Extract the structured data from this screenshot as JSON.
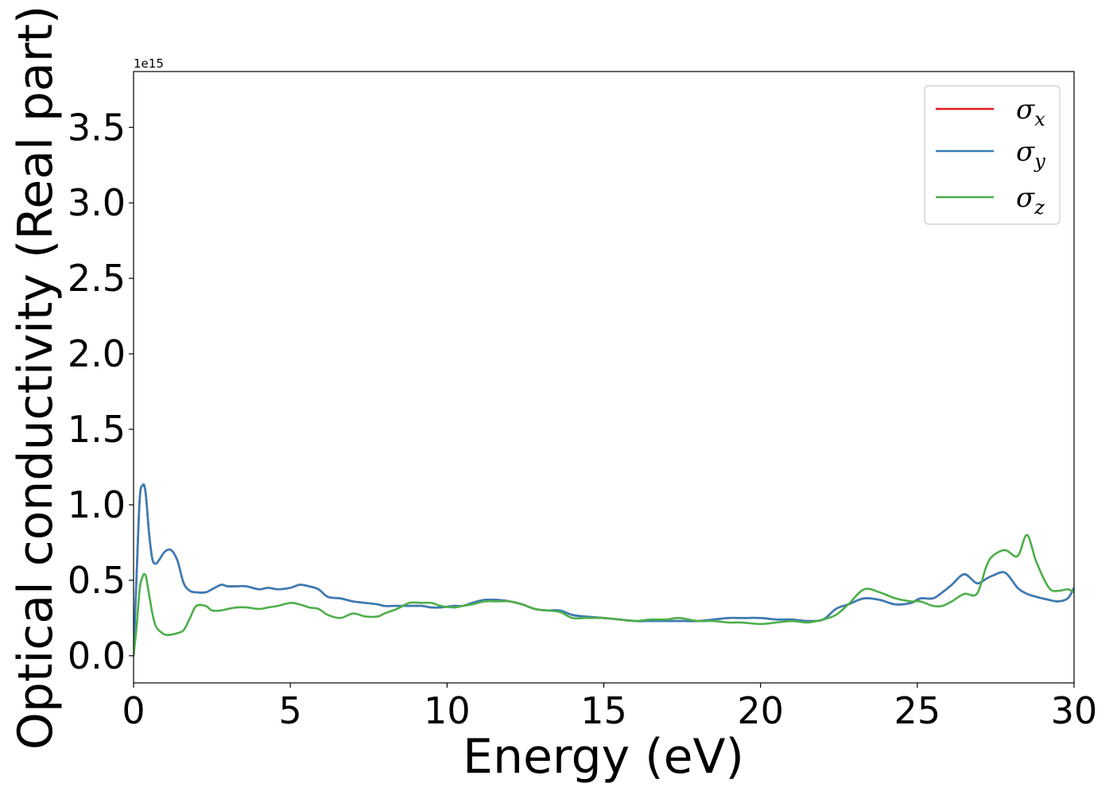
{
  "chart_data": {
    "type": "line",
    "title": "",
    "xlabel": "Energy (eV)",
    "ylabel": "Optical conductivity (Real part)",
    "y_offset_label": "1e15",
    "xlim": [
      0,
      30
    ],
    "ylim": [
      -0.18,
      3.87
    ],
    "xticks": [
      0,
      5,
      10,
      15,
      20,
      25,
      30
    ],
    "xtick_labels": [
      "0",
      "5",
      "10",
      "15",
      "20",
      "25",
      "30"
    ],
    "yticks": [
      0.0,
      0.5,
      1.0,
      1.5,
      2.0,
      2.5,
      3.0,
      3.5
    ],
    "ytick_labels": [
      "0.0",
      "0.5",
      "1.0",
      "1.5",
      "2.0",
      "2.5",
      "3.0",
      "3.5"
    ],
    "grid": false,
    "legend_position": "top-right",
    "x": [
      0,
      0.1,
      0.2,
      0.3,
      0.35,
      0.4,
      0.5,
      0.6,
      0.7,
      0.8,
      1.0,
      1.2,
      1.4,
      1.6,
      1.8,
      2.0,
      2.3,
      2.5,
      2.8,
      3.0,
      3.3,
      3.6,
      4.0,
      4.3,
      4.6,
      5.0,
      5.3,
      5.6,
      5.9,
      6.2,
      6.6,
      7.0,
      7.4,
      7.8,
      8.0,
      8.4,
      8.8,
      9.2,
      9.5,
      9.8,
      10.2,
      10.5,
      10.8,
      11.2,
      11.6,
      12.0,
      12.4,
      12.8,
      13.2,
      13.6,
      14.0,
      14.4,
      15.0,
      15.5,
      16.0,
      16.5,
      17.0,
      17.4,
      18.0,
      18.5,
      19.0,
      19.4,
      20.0,
      20.5,
      21.0,
      21.5,
      22.0,
      22.4,
      22.8,
      23.3,
      23.8,
      24.3,
      24.8,
      25.1,
      25.5,
      25.8,
      26.1,
      26.5,
      26.9,
      27.2,
      27.4,
      27.8,
      28.2,
      28.5,
      28.8,
      29.2,
      29.5,
      29.8,
      30.0
    ],
    "series": [
      {
        "name": "σx",
        "color": "#e41a1c",
        "values": [
          0.02,
          0.55,
          1.05,
          1.13,
          1.12,
          1.05,
          0.8,
          0.64,
          0.61,
          0.63,
          0.69,
          0.7,
          0.63,
          0.48,
          0.43,
          0.42,
          0.42,
          0.44,
          0.47,
          0.46,
          0.46,
          0.46,
          0.44,
          0.45,
          0.44,
          0.45,
          0.47,
          0.46,
          0.44,
          0.39,
          0.38,
          0.36,
          0.35,
          0.34,
          0.33,
          0.33,
          0.33,
          0.33,
          0.32,
          0.32,
          0.33,
          0.33,
          0.35,
          0.37,
          0.37,
          0.36,
          0.34,
          0.31,
          0.3,
          0.3,
          0.27,
          0.26,
          0.25,
          0.24,
          0.23,
          0.23,
          0.23,
          0.23,
          0.23,
          0.24,
          0.25,
          0.25,
          0.25,
          0.24,
          0.24,
          0.23,
          0.24,
          0.31,
          0.34,
          0.38,
          0.37,
          0.34,
          0.35,
          0.38,
          0.38,
          0.42,
          0.47,
          0.54,
          0.48,
          0.51,
          0.53,
          0.55,
          0.45,
          0.41,
          0.39,
          0.37,
          0.36,
          0.38,
          0.45
        ]
      },
      {
        "name": "σy",
        "color": "#377eb8",
        "values": [
          0.02,
          0.55,
          1.05,
          1.13,
          1.12,
          1.05,
          0.8,
          0.64,
          0.61,
          0.63,
          0.69,
          0.7,
          0.63,
          0.48,
          0.43,
          0.42,
          0.42,
          0.44,
          0.47,
          0.46,
          0.46,
          0.46,
          0.44,
          0.45,
          0.44,
          0.45,
          0.47,
          0.46,
          0.44,
          0.39,
          0.38,
          0.36,
          0.35,
          0.34,
          0.33,
          0.33,
          0.33,
          0.33,
          0.32,
          0.32,
          0.33,
          0.33,
          0.35,
          0.37,
          0.37,
          0.36,
          0.34,
          0.31,
          0.3,
          0.3,
          0.27,
          0.26,
          0.25,
          0.24,
          0.23,
          0.23,
          0.23,
          0.23,
          0.23,
          0.24,
          0.25,
          0.25,
          0.25,
          0.24,
          0.24,
          0.23,
          0.24,
          0.31,
          0.34,
          0.38,
          0.37,
          0.34,
          0.35,
          0.38,
          0.38,
          0.42,
          0.47,
          0.54,
          0.48,
          0.51,
          0.53,
          0.55,
          0.45,
          0.41,
          0.39,
          0.37,
          0.36,
          0.38,
          0.45
        ]
      },
      {
        "name": "σz",
        "color": "#4daf4a",
        "values": [
          0.0,
          0.2,
          0.45,
          0.53,
          0.54,
          0.52,
          0.4,
          0.28,
          0.2,
          0.17,
          0.14,
          0.14,
          0.15,
          0.17,
          0.25,
          0.33,
          0.33,
          0.3,
          0.3,
          0.31,
          0.32,
          0.32,
          0.31,
          0.32,
          0.33,
          0.35,
          0.34,
          0.32,
          0.31,
          0.27,
          0.25,
          0.28,
          0.26,
          0.26,
          0.28,
          0.31,
          0.35,
          0.35,
          0.35,
          0.33,
          0.32,
          0.33,
          0.34,
          0.36,
          0.36,
          0.36,
          0.34,
          0.31,
          0.3,
          0.29,
          0.25,
          0.25,
          0.25,
          0.24,
          0.23,
          0.24,
          0.24,
          0.25,
          0.23,
          0.23,
          0.22,
          0.22,
          0.21,
          0.22,
          0.23,
          0.22,
          0.24,
          0.27,
          0.34,
          0.44,
          0.42,
          0.38,
          0.36,
          0.36,
          0.33,
          0.33,
          0.36,
          0.41,
          0.41,
          0.59,
          0.66,
          0.7,
          0.66,
          0.8,
          0.62,
          0.45,
          0.43,
          0.44,
          0.42
        ]
      }
    ],
    "legend": [
      {
        "base": "σ",
        "sub": "x"
      },
      {
        "base": "σ",
        "sub": "y"
      },
      {
        "base": "σ",
        "sub": "z"
      }
    ]
  }
}
